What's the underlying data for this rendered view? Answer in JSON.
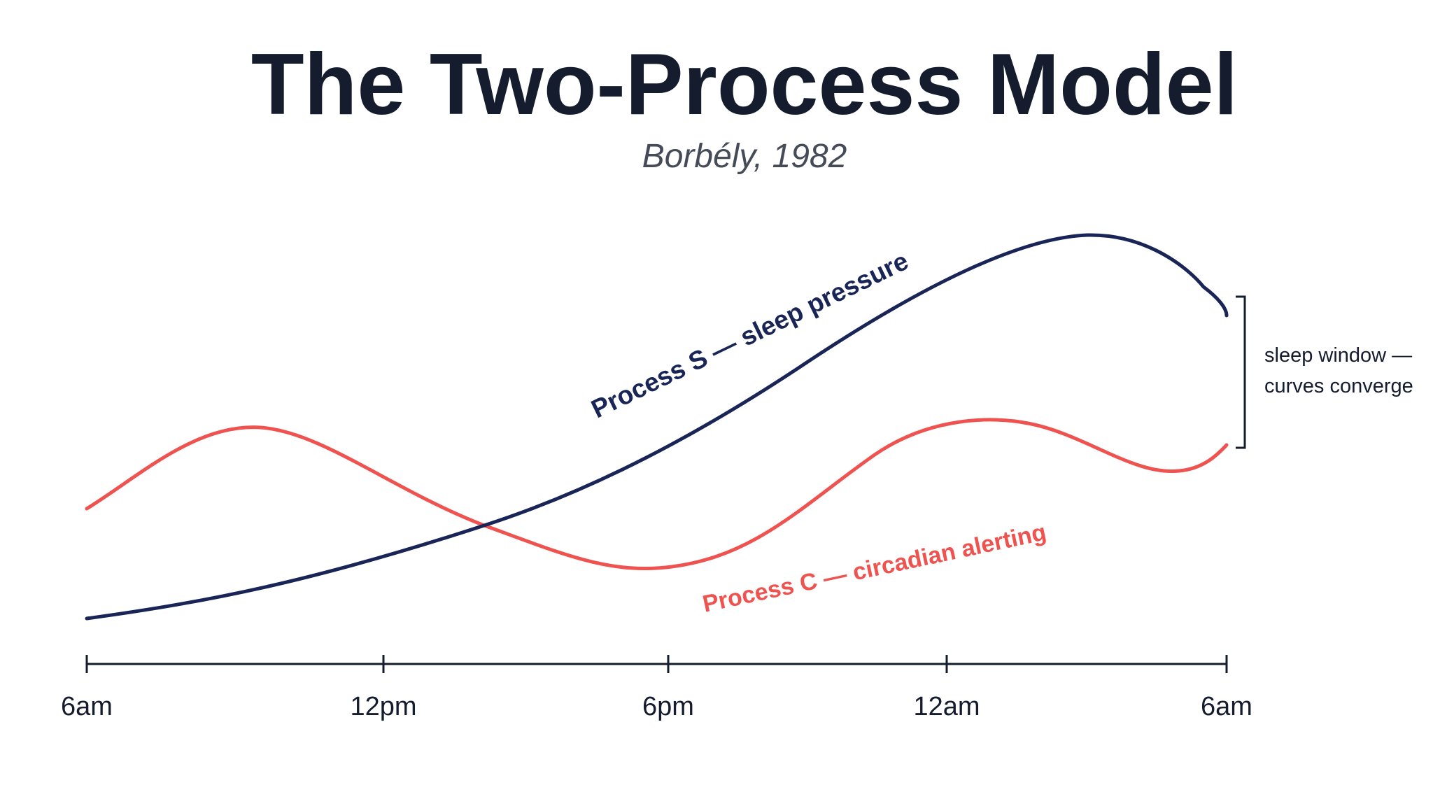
{
  "header": {
    "title": "The Two-Process Model",
    "subtitle": "Borbély, 1982"
  },
  "x_axis": {
    "labels": [
      "6am",
      "12pm",
      "6pm",
      "12am",
      "6am"
    ]
  },
  "curves": [
    {
      "label": "Process S — sleep pressure"
    },
    {
      "label": "Process C — circadian alerting"
    }
  ],
  "annotation": {
    "lines": [
      "sleep window —",
      "curves converge"
    ]
  }
}
